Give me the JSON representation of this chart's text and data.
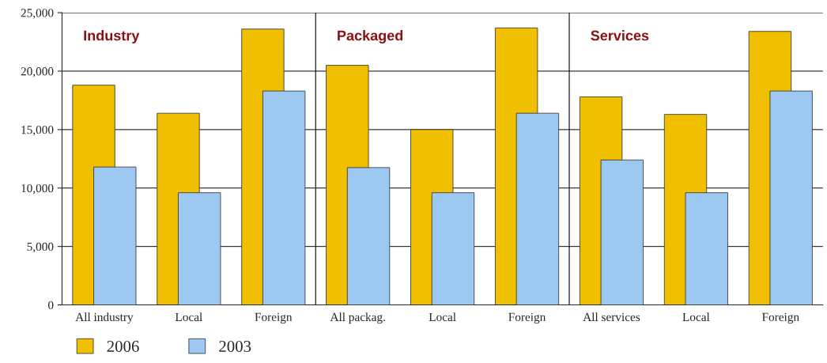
{
  "chart_data": {
    "type": "bar",
    "categories": [
      "All industry",
      "Local",
      "Foreign",
      "All packag.",
      "Local",
      "Foreign",
      "All services",
      "Local",
      "Foreign"
    ],
    "series": [
      {
        "name": "2006",
        "color": "#f0c000",
        "values": [
          18800,
          16400,
          23600,
          20500,
          15000,
          23700,
          17800,
          16300,
          23400
        ]
      },
      {
        "name": "2003",
        "color": "#9cc8f2",
        "values": [
          11800,
          9600,
          18300,
          11750,
          9600,
          16400,
          12400,
          9600,
          18300
        ]
      }
    ],
    "ylim": [
      0,
      25000
    ],
    "yticks": [
      {
        "value": 0,
        "label": "0"
      },
      {
        "value": 5000,
        "label": "5,000"
      },
      {
        "value": 10000,
        "label": "10,000"
      },
      {
        "value": 15000,
        "label": "15,000"
      },
      {
        "value": 20000,
        "label": "20,000"
      },
      {
        "value": 25000,
        "label": "25,000"
      }
    ],
    "grid": "y",
    "legend": "bottom left",
    "annotations": [
      "Industry",
      "Packaged",
      "Services"
    ]
  }
}
